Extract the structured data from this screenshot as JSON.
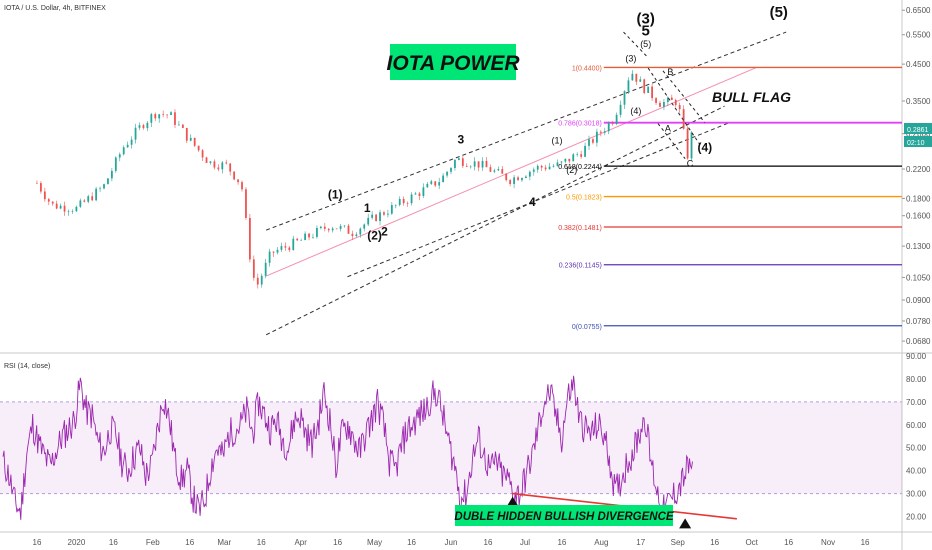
{
  "header": {
    "title": "IOTA / U.S. Dollar, 4h, BITFINEX"
  },
  "colors": {
    "up": "#26a69a",
    "down": "#ef5350",
    "rsi": "#9c27b0",
    "fib1": "#e45c3a",
    "fib0786": "#e040fb",
    "fib0618": "#000000",
    "fib05": "#ff9800",
    "fib0382": "#e53935",
    "fib0236": "#5e35b1",
    "fib0": "#3f51b5",
    "banner": "#00e676",
    "divergence": "#e53935"
  },
  "main": {
    "banner": "IOTA POWER",
    "bull_flag": "BULL FLAG",
    "price_tags": [
      "0.2861",
      "02:10"
    ]
  },
  "rsi_panel": {
    "label": "RSI (14, close)",
    "banner": "DUBLE HIDDEN BULLISH DIVERGENCE"
  },
  "chart_data": [
    {
      "type": "candlestick",
      "title": "IOTA / U.S. Dollar, 4h, BITFINEX",
      "y_scale": "log",
      "ylim": [
        0.064,
        0.66
      ],
      "price_ticks": [
        "0.6500",
        "0.5500",
        "0.4500",
        "0.3500",
        "0.2800",
        "0.2200",
        "0.1800",
        "0.1600",
        "0.1300",
        "0.1050",
        "0.0900",
        "0.0780",
        "0.0680"
      ],
      "x_ticks": [
        "16",
        "2020",
        "16",
        "Feb",
        "16",
        "Mar",
        "16",
        "Apr",
        "16",
        "May",
        "16",
        "Jun",
        "16",
        "Jul",
        "16",
        "Aug",
        "17",
        "Sep",
        "16",
        "Oct",
        "16",
        "Nov",
        "16"
      ],
      "price_path": [
        [
          "2019-12-16",
          0.2
        ],
        [
          "2019-12-22",
          0.172
        ],
        [
          "2020-01-01",
          0.168
        ],
        [
          "2020-01-12",
          0.195
        ],
        [
          "2020-01-20",
          0.255
        ],
        [
          "2020-01-28",
          0.3
        ],
        [
          "2020-02-02",
          0.322
        ],
        [
          "2020-02-08",
          0.318
        ],
        [
          "2020-02-16",
          0.268
        ],
        [
          "2020-02-24",
          0.23
        ],
        [
          "2020-03-02",
          0.225
        ],
        [
          "2020-03-08",
          0.198
        ],
        [
          "2020-03-12",
          0.112
        ],
        [
          "2020-03-14",
          0.098
        ],
        [
          "2020-03-20",
          0.124
        ],
        [
          "2020-04-01",
          0.135
        ],
        [
          "2020-04-13",
          0.15
        ],
        [
          "2020-04-22",
          0.143
        ],
        [
          "2020-05-01",
          0.158
        ],
        [
          "2020-05-15",
          0.18
        ],
        [
          "2020-05-28",
          0.205
        ],
        [
          "2020-06-03",
          0.235
        ],
        [
          "2020-06-12",
          0.228
        ],
        [
          "2020-06-25",
          0.205
        ],
        [
          "2020-07-06",
          0.222
        ],
        [
          "2020-07-15",
          0.226
        ],
        [
          "2020-07-24",
          0.248
        ],
        [
          "2020-08-06",
          0.31
        ],
        [
          "2020-08-13",
          0.43
        ],
        [
          "2020-08-18",
          0.385
        ],
        [
          "2020-08-25",
          0.345
        ],
        [
          "2020-09-01",
          0.35
        ],
        [
          "2020-09-05",
          0.242
        ],
        [
          "2020-09-07",
          0.286
        ]
      ],
      "fib_levels": [
        {
          "label": "1(0.4400)",
          "value": 0.44
        },
        {
          "label": "0.786(0.3018)",
          "value": 0.3018
        },
        {
          "label": "0.618(0.2244)",
          "value": 0.2244
        },
        {
          "label": "0.5(0.1823)",
          "value": 0.1823
        },
        {
          "label": "0.382(0.1481)",
          "value": 0.1481
        },
        {
          "label": "0.236(0.1145)",
          "value": 0.1145
        },
        {
          "label": "0(0.0755)",
          "value": 0.0755
        }
      ],
      "wave_labels": [
        {
          "text": "(1)",
          "date": "2020-04-15",
          "price": 0.18
        },
        {
          "text": "1",
          "date": "2020-04-28",
          "price": 0.164
        },
        {
          "text": "(2)",
          "date": "2020-05-01",
          "price": 0.136
        },
        {
          "text": "2",
          "date": "2020-05-05",
          "price": 0.14
        },
        {
          "text": "3",
          "date": "2020-06-05",
          "price": 0.262
        },
        {
          "text": "4",
          "date": "2020-07-04",
          "price": 0.171
        },
        {
          "text": "(1)",
          "date": "2020-07-14",
          "price": 0.262
        },
        {
          "text": "(2)",
          "date": "2020-07-20",
          "price": 0.214
        },
        {
          "text": "(3)",
          "date": "2020-08-13",
          "price": 0.458
        },
        {
          "text": "(4)",
          "date": "2020-08-15",
          "price": 0.32
        },
        {
          "text": "A",
          "date": "2020-08-28",
          "price": 0.284
        },
        {
          "text": "B",
          "date": "2020-08-29",
          "price": 0.418
        },
        {
          "text": "C",
          "date": "2020-09-06",
          "price": 0.224
        },
        {
          "text": "(4)",
          "date": "2020-09-12",
          "price": 0.248
        },
        {
          "text": "(3)",
          "date": "2020-08-19",
          "price": 0.594
        },
        {
          "text": "5",
          "date": "2020-08-19",
          "price": 0.548
        },
        {
          "text": "(5)",
          "date": "2020-08-19",
          "price": 0.505
        },
        {
          "text": "(5)",
          "date": "2020-10-12",
          "price": 0.62
        }
      ]
    },
    {
      "type": "line",
      "title": "RSI (14, close)",
      "ylim": [
        15,
        90
      ],
      "overbought": 70,
      "oversold": 30,
      "y_ticks": [
        90,
        80,
        70,
        60,
        50,
        40,
        30,
        20
      ],
      "y_tick_labels": [
        "90.00",
        "80.00",
        "70.00",
        "60.00",
        "50.00",
        "40.00",
        "30.00",
        "20.00"
      ],
      "series": [
        {
          "values": [
            44,
            38,
            26,
            22,
            48,
            60,
            52,
            46,
            42,
            49,
            55,
            58,
            62,
            78,
            66,
            64,
            52,
            48,
            58,
            56,
            44,
            40,
            46,
            50,
            38,
            42,
            58,
            72,
            62,
            44,
            36,
            40,
            28,
            22,
            28,
            42,
            50,
            46,
            56,
            58,
            60,
            66,
            56,
            70,
            64,
            58,
            62,
            54,
            50,
            62,
            64,
            56,
            52,
            60,
            74,
            62,
            42,
            56,
            60,
            54,
            48,
            56,
            62,
            70,
            60,
            44,
            40,
            50,
            58,
            60,
            64,
            66,
            72,
            74,
            64,
            52,
            42,
            28,
            30,
            46,
            54,
            46,
            40,
            44,
            38,
            36,
            30,
            30,
            38,
            46,
            58,
            70,
            74,
            64,
            54,
            72,
            78,
            62,
            58,
            56,
            60,
            56,
            46,
            30,
            36,
            44,
            48,
            56,
            64,
            44,
            32,
            22,
            26,
            30,
            34,
            40,
            44
          ]
        }
      ],
      "divergence_line": [
        [
          30,
          19
        ]
      ]
    }
  ]
}
